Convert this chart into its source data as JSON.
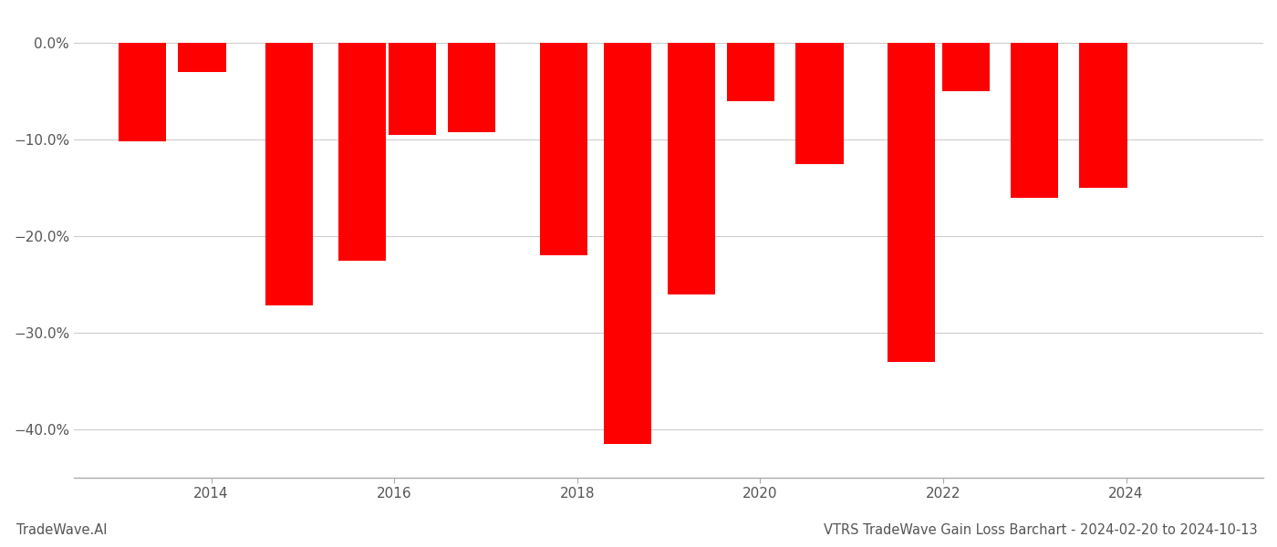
{
  "bars": [
    {
      "x": 2013.25,
      "value": -10.2
    },
    {
      "x": 2013.9,
      "value": -3.0
    },
    {
      "x": 2014.85,
      "value": -27.2
    },
    {
      "x": 2015.65,
      "value": -22.5
    },
    {
      "x": 2016.2,
      "value": -9.5
    },
    {
      "x": 2016.85,
      "value": -9.2
    },
    {
      "x": 2017.85,
      "value": -22.0
    },
    {
      "x": 2018.55,
      "value": -41.5
    },
    {
      "x": 2019.25,
      "value": -26.0
    },
    {
      "x": 2019.9,
      "value": -6.0
    },
    {
      "x": 2020.65,
      "value": -12.5
    },
    {
      "x": 2021.65,
      "value": -33.0
    },
    {
      "x": 2022.25,
      "value": -5.0
    },
    {
      "x": 2023.0,
      "value": -16.0
    },
    {
      "x": 2023.75,
      "value": -15.0
    }
  ],
  "bar_color": "#ff0000",
  "bar_width": 0.52,
  "ylim": [
    -45,
    2.5
  ],
  "yticks": [
    0.0,
    -10.0,
    -20.0,
    -30.0,
    -40.0
  ],
  "ytick_labels": [
    "0.0%",
    "−10.0%",
    "−20.0%",
    "−30.0%",
    "−40.0%"
  ],
  "xlim": [
    2012.5,
    2025.5
  ],
  "xticks": [
    2014,
    2016,
    2018,
    2020,
    2022,
    2024
  ],
  "title": "VTRS TradeWave Gain Loss Barchart - 2024-02-20 to 2024-10-13",
  "footer_left": "TradeWave.AI",
  "title_fontsize": 10.5,
  "footer_fontsize": 10.5,
  "tick_fontsize": 11,
  "background_color": "#ffffff",
  "grid_color": "#cccccc",
  "spine_color": "#aaaaaa",
  "text_color": "#555555"
}
